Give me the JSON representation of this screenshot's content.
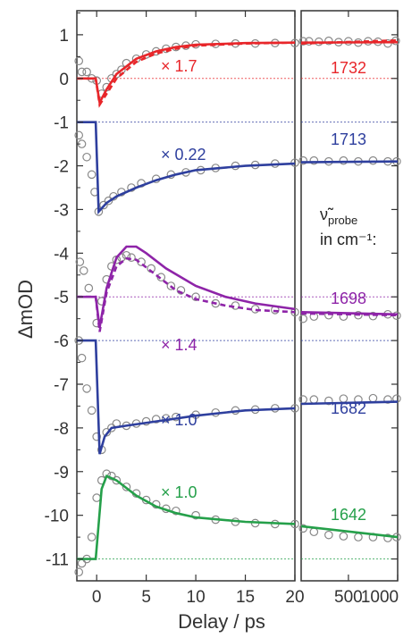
{
  "chart_data": {
    "type": "line",
    "ylabel": "ΔmOD",
    "xlabel": "Delay / ps",
    "ylim": [
      -11.5,
      1.55
    ],
    "panel_left": {
      "xlim": [
        -2,
        20
      ],
      "xticks": [
        "0",
        "5",
        "10",
        "15",
        "20"
      ],
      "xtick_values": [
        0,
        5,
        10,
        15,
        20
      ]
    },
    "panel_right": {
      "xlim": [
        20,
        1000
      ],
      "xticks": [
        "500",
        "1000"
      ],
      "xtick_values": [
        500,
        1000
      ]
    },
    "yticks": [
      "1",
      "0",
      "-1",
      "-2",
      "-3",
      "-4",
      "-5",
      "-6",
      "-7",
      "-8",
      "-9",
      "-10",
      "-11"
    ],
    "ytick_values": [
      1,
      0,
      -1,
      -2,
      -3,
      -4,
      -5,
      -6,
      -7,
      -8,
      -9,
      -10,
      -11
    ],
    "legend_title": {
      "nu": "ν̃",
      "sub": "probe",
      "unit": "in cm⁻¹:"
    },
    "series": [
      {
        "name": "1732",
        "color": "#e8262a",
        "scale_label": "× 1.7",
        "baseline": 0,
        "fit": [
          [
            -2,
            0
          ],
          [
            -0.1,
            0
          ],
          [
            0.3,
            -0.55
          ],
          [
            1,
            -0.25
          ],
          [
            2,
            0.1
          ],
          [
            4,
            0.45
          ],
          [
            6,
            0.62
          ],
          [
            8,
            0.72
          ],
          [
            10,
            0.77
          ],
          [
            15,
            0.81
          ],
          [
            20,
            0.82
          ]
        ],
        "fit2": [
          [
            -2,
            0
          ],
          [
            -0.1,
            0
          ],
          [
            0.3,
            -0.6
          ],
          [
            1,
            -0.35
          ],
          [
            2,
            0.0
          ],
          [
            4,
            0.38
          ],
          [
            6,
            0.57
          ],
          [
            8,
            0.68
          ],
          [
            10,
            0.75
          ],
          [
            15,
            0.8
          ],
          [
            20,
            0.82
          ]
        ],
        "fit_right": [
          [
            20,
            0.82
          ],
          [
            1000,
            0.83
          ]
        ],
        "fit2_right": [
          [
            20,
            0.8
          ],
          [
            1000,
            0.87
          ]
        ],
        "points": [
          [
            -1.8,
            0.4
          ],
          [
            -1.5,
            0.15
          ],
          [
            -1,
            0.15
          ],
          [
            -0.5,
            0
          ],
          [
            0,
            -0.05
          ],
          [
            0.5,
            -0.35
          ],
          [
            1,
            -0.2
          ],
          [
            1.5,
            0
          ],
          [
            2,
            0.1
          ],
          [
            2.5,
            0.2
          ],
          [
            3,
            0.35
          ],
          [
            4,
            0.45
          ],
          [
            5,
            0.55
          ],
          [
            6,
            0.62
          ],
          [
            7,
            0.68
          ],
          [
            8,
            0.72
          ],
          [
            9,
            0.75
          ],
          [
            10,
            0.78
          ],
          [
            12,
            0.79
          ],
          [
            14,
            0.8
          ],
          [
            16,
            0.8
          ],
          [
            18,
            0.81
          ],
          [
            20,
            0.81
          ]
        ],
        "points_right": [
          [
            40,
            0.85
          ],
          [
            100,
            0.85
          ],
          [
            200,
            0.84
          ],
          [
            300,
            0.86
          ],
          [
            400,
            0.83
          ],
          [
            500,
            0.85
          ],
          [
            600,
            0.82
          ],
          [
            700,
            0.85
          ],
          [
            800,
            0.84
          ],
          [
            900,
            0.8
          ],
          [
            980,
            0.86
          ]
        ]
      },
      {
        "name": "1713",
        "color": "#2e3f9e",
        "scale_label": "× 0.22",
        "baseline": -1,
        "fit": [
          [
            -2,
            -1
          ],
          [
            -0.1,
            -1
          ],
          [
            0.2,
            -3.05
          ],
          [
            1,
            -2.85
          ],
          [
            2,
            -2.7
          ],
          [
            4,
            -2.5
          ],
          [
            6,
            -2.33
          ],
          [
            8,
            -2.2
          ],
          [
            10,
            -2.1
          ],
          [
            15,
            -2.0
          ],
          [
            20,
            -1.95
          ]
        ],
        "fit_right": [
          [
            20,
            -1.92
          ],
          [
            1000,
            -1.9
          ]
        ],
        "points": [
          [
            -1.8,
            -1.3
          ],
          [
            -1.5,
            -1.5
          ],
          [
            -1,
            -1.8
          ],
          [
            -0.5,
            -2.2
          ],
          [
            -0.2,
            -2.6
          ],
          [
            0.2,
            -3.05
          ],
          [
            0.7,
            -2.9
          ],
          [
            1.2,
            -2.8
          ],
          [
            1.7,
            -2.7
          ],
          [
            2.5,
            -2.6
          ],
          [
            3.5,
            -2.5
          ],
          [
            4.5,
            -2.4
          ],
          [
            6,
            -2.3
          ],
          [
            7.5,
            -2.2
          ],
          [
            9,
            -2.15
          ],
          [
            10.5,
            -2.1
          ],
          [
            12,
            -2.05
          ],
          [
            14,
            -2.0
          ],
          [
            16,
            -1.98
          ],
          [
            18,
            -1.95
          ],
          [
            20,
            -1.93
          ]
        ],
        "points_right": [
          [
            40,
            -1.88
          ],
          [
            150,
            -1.88
          ],
          [
            300,
            -1.9
          ],
          [
            450,
            -1.88
          ],
          [
            600,
            -1.9
          ],
          [
            750,
            -1.88
          ],
          [
            900,
            -1.9
          ],
          [
            990,
            -1.9
          ]
        ]
      },
      {
        "name": "1698",
        "color": "#8e24a8",
        "scale_label": "× 1.4",
        "baseline": -5,
        "fit": [
          [
            -2,
            -5
          ],
          [
            -0.1,
            -5
          ],
          [
            0.3,
            -5.7
          ],
          [
            1,
            -4.8
          ],
          [
            2,
            -4.1
          ],
          [
            3,
            -3.85
          ],
          [
            4,
            -3.85
          ],
          [
            5,
            -4.0
          ],
          [
            7,
            -4.35
          ],
          [
            10,
            -4.75
          ],
          [
            13,
            -5.0
          ],
          [
            16,
            -5.15
          ],
          [
            20,
            -5.28
          ]
        ],
        "fit2": [
          [
            -2,
            -5
          ],
          [
            -0.1,
            -5
          ],
          [
            0.3,
            -5.8
          ],
          [
            1,
            -4.9
          ],
          [
            2,
            -4.3
          ],
          [
            3,
            -4.12
          ],
          [
            4,
            -4.15
          ],
          [
            6,
            -4.5
          ],
          [
            8,
            -4.85
          ],
          [
            10,
            -5.05
          ],
          [
            13,
            -5.2
          ],
          [
            16,
            -5.3
          ],
          [
            20,
            -5.35
          ]
        ],
        "fit_right": [
          [
            20,
            -5.35
          ],
          [
            1000,
            -5.4
          ]
        ],
        "fit2_right": [
          [
            20,
            -5.38
          ],
          [
            1000,
            -5.42
          ]
        ],
        "points": [
          [
            -1.7,
            -4.2
          ],
          [
            -1.3,
            -4.4
          ],
          [
            -0.8,
            -4.8
          ],
          [
            0,
            -5.6
          ],
          [
            0.5,
            -5.1
          ],
          [
            1,
            -4.6
          ],
          [
            1.5,
            -4.3
          ],
          [
            2,
            -4.15
          ],
          [
            2.5,
            -4.1
          ],
          [
            3,
            -4.05
          ],
          [
            3.5,
            -4.1
          ],
          [
            4.5,
            -4.2
          ],
          [
            5.5,
            -4.35
          ],
          [
            6.5,
            -4.55
          ],
          [
            7.5,
            -4.75
          ],
          [
            8.5,
            -4.85
          ],
          [
            10,
            -5.0
          ],
          [
            12,
            -5.15
          ],
          [
            14,
            -5.2
          ],
          [
            16,
            -5.28
          ],
          [
            18,
            -5.3
          ],
          [
            20,
            -5.35
          ]
        ],
        "points_right": [
          [
            40,
            -5.5
          ],
          [
            150,
            -5.45
          ],
          [
            300,
            -5.42
          ],
          [
            450,
            -5.45
          ],
          [
            600,
            -5.42
          ],
          [
            750,
            -5.44
          ],
          [
            900,
            -5.4
          ],
          [
            990,
            -5.43
          ]
        ]
      },
      {
        "name": "1682",
        "color": "#2e3f9e",
        "scale_label": "× 1.0",
        "baseline": -6,
        "fit": [
          [
            -2,
            -6
          ],
          [
            -0.1,
            -6
          ],
          [
            0.3,
            -8.6
          ],
          [
            0.8,
            -8.2
          ],
          [
            1.5,
            -8.0
          ],
          [
            3,
            -7.95
          ],
          [
            6,
            -7.85
          ],
          [
            10,
            -7.72
          ],
          [
            15,
            -7.6
          ],
          [
            20,
            -7.55
          ]
        ],
        "fit_right": [
          [
            20,
            -7.45
          ],
          [
            1000,
            -7.4
          ]
        ],
        "points": [
          [
            -1.8,
            -6.0
          ],
          [
            -1.5,
            -6.4
          ],
          [
            -1,
            -7.1
          ],
          [
            -0.5,
            -7.6
          ],
          [
            0,
            -8.2
          ],
          [
            0.5,
            -8.5
          ],
          [
            1,
            -8.1
          ],
          [
            1.5,
            -8.0
          ],
          [
            2,
            -7.9
          ],
          [
            3,
            -7.95
          ],
          [
            4,
            -7.9
          ],
          [
            5,
            -7.85
          ],
          [
            6,
            -7.8
          ],
          [
            7,
            -7.78
          ],
          [
            8,
            -7.75
          ],
          [
            10,
            -7.7
          ],
          [
            12,
            -7.65
          ],
          [
            14,
            -7.6
          ],
          [
            16,
            -7.58
          ],
          [
            18,
            -7.55
          ],
          [
            20,
            -7.55
          ]
        ],
        "points_right": [
          [
            40,
            -7.35
          ],
          [
            150,
            -7.35
          ],
          [
            300,
            -7.38
          ],
          [
            450,
            -7.33
          ],
          [
            600,
            -7.35
          ],
          [
            750,
            -7.32
          ],
          [
            900,
            -7.35
          ],
          [
            990,
            -7.33
          ]
        ]
      },
      {
        "name": "1642",
        "color": "#25a04a",
        "scale_label": "× 1.0",
        "baseline": -11,
        "fit": [
          [
            -2,
            -11
          ],
          [
            -0.1,
            -11
          ],
          [
            0.5,
            -9.4
          ],
          [
            1,
            -9.1
          ],
          [
            2,
            -9.2
          ],
          [
            4,
            -9.55
          ],
          [
            6,
            -9.8
          ],
          [
            8,
            -9.95
          ],
          [
            10,
            -10.05
          ],
          [
            15,
            -10.15
          ],
          [
            20,
            -10.2
          ]
        ],
        "fit_right": [
          [
            20,
            -10.25
          ],
          [
            1000,
            -10.5
          ]
        ],
        "points": [
          [
            -1.8,
            -11.3
          ],
          [
            -1.5,
            -11.1
          ],
          [
            -1,
            -11.0
          ],
          [
            -0.5,
            -10.5
          ],
          [
            0,
            -9.6
          ],
          [
            0.5,
            -9.2
          ],
          [
            1,
            -9.05
          ],
          [
            1.5,
            -9.1
          ],
          [
            2,
            -9.2
          ],
          [
            3,
            -9.35
          ],
          [
            4,
            -9.5
          ],
          [
            5,
            -9.65
          ],
          [
            6,
            -9.75
          ],
          [
            7,
            -9.85
          ],
          [
            8,
            -9.9
          ],
          [
            10,
            -10.0
          ],
          [
            12,
            -10.1
          ],
          [
            14,
            -10.15
          ],
          [
            16,
            -10.18
          ],
          [
            18,
            -10.2
          ],
          [
            20,
            -10.2
          ]
        ],
        "points_right": [
          [
            40,
            -10.3
          ],
          [
            150,
            -10.38
          ],
          [
            300,
            -10.45
          ],
          [
            450,
            -10.48
          ],
          [
            600,
            -10.5
          ],
          [
            750,
            -10.5
          ],
          [
            900,
            -10.52
          ],
          [
            990,
            -10.5
          ]
        ]
      }
    ]
  }
}
